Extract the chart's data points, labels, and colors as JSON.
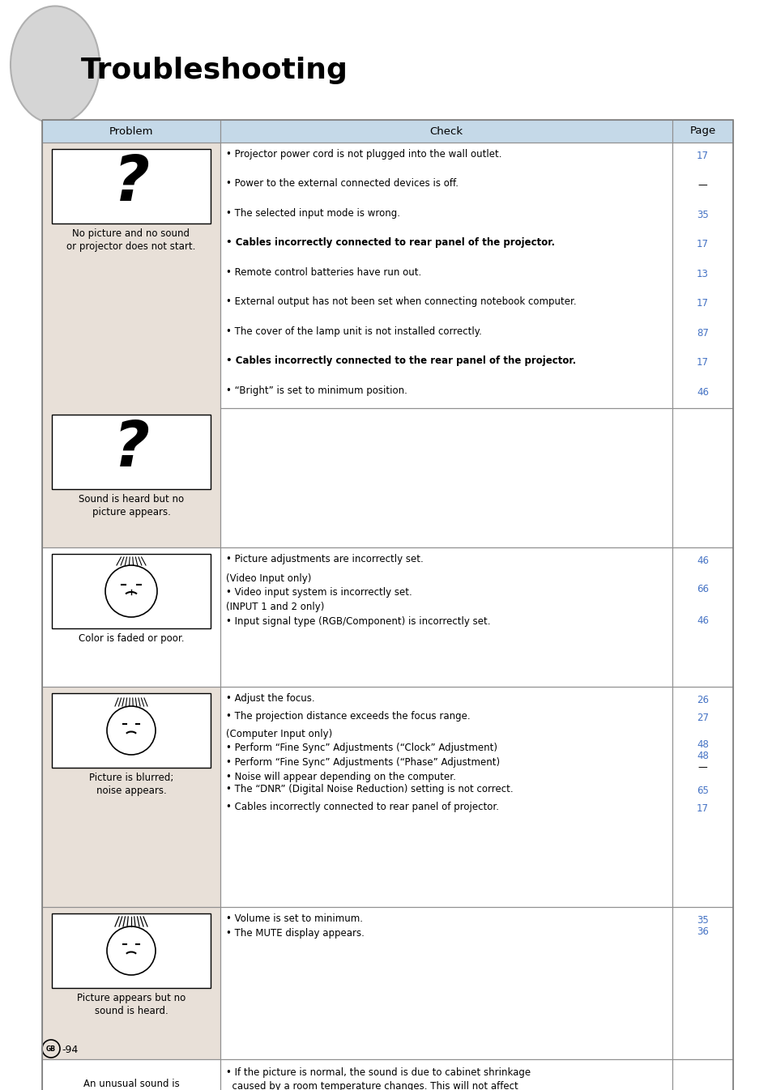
{
  "title": "Troubleshooting",
  "page_number": "GB-94",
  "header_bg": "#c5d9e8",
  "body_bg_gray": "#e8e0d8",
  "body_bg_white": "#ffffff",
  "blue_text": "#4472c4",
  "black_text": "#000000",
  "table_border": "#909090",
  "checks_row0": [
    {
      "text": "Projector power cord is not plugged into the wall outlet.",
      "page": "17",
      "bold": false
    },
    {
      "text": "Power to the external connected devices is off.",
      "page": "—",
      "bold": false
    },
    {
      "text": "The selected input mode is wrong.",
      "page": "35",
      "bold": false
    },
    {
      "text": "Cables incorrectly connected to rear panel of the projector.",
      "page": "17",
      "bold": true
    },
    {
      "text": "Remote control batteries have run out.",
      "page": "13",
      "bold": false
    },
    {
      "text": "External output has not been set when connecting notebook computer.",
      "page": "17",
      "bold": false
    },
    {
      "text": "The cover of the lamp unit is not installed correctly.",
      "page": "87",
      "bold": false
    },
    {
      "text": "Cables incorrectly connected to the rear panel of the projector.",
      "page": "17",
      "bold": true
    },
    {
      "text": "“Bright” is set to minimum position.",
      "page": "46",
      "bold": false
    }
  ]
}
